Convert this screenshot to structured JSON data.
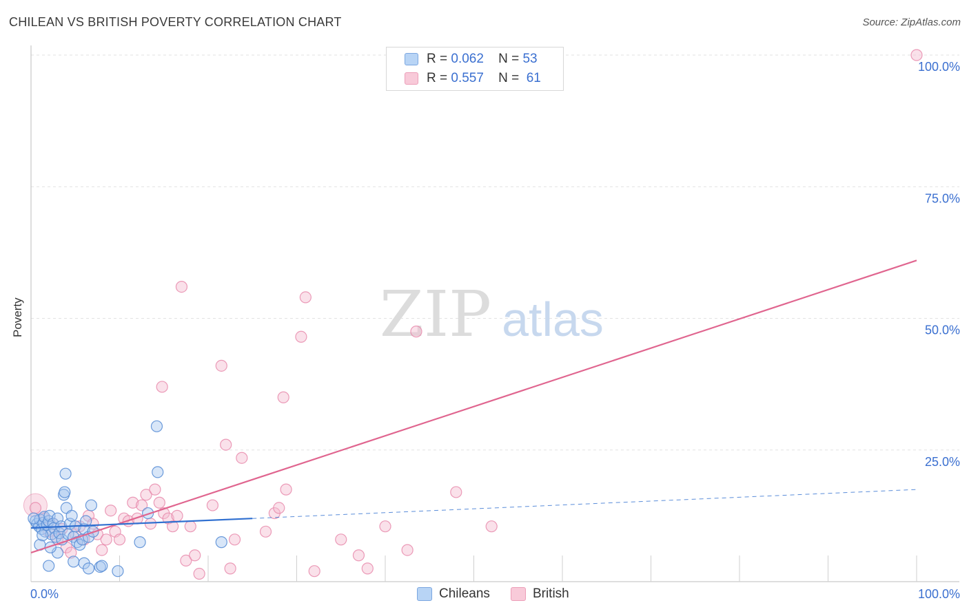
{
  "header": {
    "title": "CHILEAN VS BRITISH POVERTY CORRELATION CHART",
    "source": "Source: ZipAtlas.com"
  },
  "legend": {
    "rows": [
      {
        "r_label": "R =",
        "r_value": "0.062",
        "n_label": "N =",
        "n_value": "53"
      },
      {
        "r_label": "R =",
        "r_value": "0.557",
        "n_label": "N =",
        "n_value": "61"
      }
    ]
  },
  "bottom_legend": {
    "chileans": "Chileans",
    "british": "British"
  },
  "watermark": {
    "zip": "ZIP",
    "atlas": "atlas"
  },
  "colors": {
    "chileans_fill": "#a8c8f0",
    "chileans_stroke": "#5b8fd6",
    "chileans_line": "#2f6fd0",
    "british_fill": "#f5bcd0",
    "british_stroke": "#e88aab",
    "british_line": "#e0658f",
    "axis_label": "#3a6fd0"
  },
  "chart_data": {
    "type": "scatter",
    "title": "CHILEAN VS BRITISH POVERTY CORRELATION CHART",
    "xlabel": "",
    "ylabel": "Poverty",
    "xlim": [
      0,
      100
    ],
    "ylim": [
      0,
      100
    ],
    "x_tick_labels": [
      "0.0%",
      "100.0%"
    ],
    "y_tick_labels": [
      "25.0%",
      "50.0%",
      "75.0%",
      "100.0%"
    ],
    "y_ticks": [
      25,
      50,
      75,
      100
    ],
    "grid": "horizontal dashed",
    "series": [
      {
        "name": "Chileans",
        "R": 0.062,
        "N": 53,
        "trend": {
          "x0": 0,
          "y0": 10.2,
          "x1": 25,
          "y1": 12.0,
          "dashed_to_x": 100,
          "dashed_to_y": 17.5
        },
        "points": [
          [
            0.5,
            11.5
          ],
          [
            0.7,
            11.0
          ],
          [
            0.9,
            10.5
          ],
          [
            1.0,
            11.8
          ],
          [
            1.2,
            10.0
          ],
          [
            1.4,
            11.2
          ],
          [
            1.5,
            12.3
          ],
          [
            1.6,
            9.5
          ],
          [
            1.8,
            10.8
          ],
          [
            2.0,
            11.5
          ],
          [
            2.1,
            12.5
          ],
          [
            2.3,
            9.0
          ],
          [
            2.5,
            11.0
          ],
          [
            2.6,
            10.2
          ],
          [
            2.8,
            8.5
          ],
          [
            3.0,
            12.0
          ],
          [
            3.2,
            9.2
          ],
          [
            3.4,
            10.5
          ],
          [
            3.5,
            8.0
          ],
          [
            3.7,
            16.5
          ],
          [
            3.8,
            17.0
          ],
          [
            3.9,
            20.5
          ],
          [
            4.0,
            14.0
          ],
          [
            4.2,
            9.0
          ],
          [
            4.4,
            11.0
          ],
          [
            4.6,
            12.5
          ],
          [
            4.8,
            8.5
          ],
          [
            5.0,
            10.5
          ],
          [
            5.2,
            7.5
          ],
          [
            5.5,
            7.0
          ],
          [
            5.8,
            8.0
          ],
          [
            6.0,
            10.0
          ],
          [
            6.2,
            11.5
          ],
          [
            6.5,
            8.5
          ],
          [
            6.8,
            14.5
          ],
          [
            7.0,
            9.5
          ],
          [
            1.0,
            7.0
          ],
          [
            2.0,
            3.0
          ],
          [
            3.0,
            5.5
          ],
          [
            4.8,
            3.8
          ],
          [
            6.0,
            3.5
          ],
          [
            6.5,
            2.5
          ],
          [
            7.8,
            2.8
          ],
          [
            8.0,
            3.0
          ],
          [
            9.8,
            2.0
          ],
          [
            12.3,
            7.5
          ],
          [
            13.2,
            13.0
          ],
          [
            14.3,
            20.8
          ],
          [
            14.2,
            29.5
          ],
          [
            21.5,
            7.5
          ],
          [
            0.3,
            12.0
          ],
          [
            1.3,
            8.8
          ],
          [
            2.2,
            6.5
          ]
        ]
      },
      {
        "name": "British",
        "R": 0.557,
        "N": 61,
        "trend": {
          "x0": 0,
          "y0": 5.5,
          "x1": 100,
          "y1": 61.0
        },
        "points": [
          [
            0.5,
            14.0
          ],
          [
            1.5,
            12.0
          ],
          [
            2.0,
            9.5
          ],
          [
            2.5,
            11.0
          ],
          [
            3.0,
            8.0
          ],
          [
            3.5,
            10.0
          ],
          [
            4.0,
            6.5
          ],
          [
            4.5,
            5.5
          ],
          [
            5.0,
            9.0
          ],
          [
            5.5,
            10.5
          ],
          [
            6.0,
            8.0
          ],
          [
            6.5,
            12.5
          ],
          [
            7.0,
            11.0
          ],
          [
            7.5,
            9.0
          ],
          [
            8.0,
            6.0
          ],
          [
            8.5,
            8.0
          ],
          [
            9.0,
            13.5
          ],
          [
            9.5,
            9.5
          ],
          [
            10.0,
            8.0
          ],
          [
            10.5,
            12.0
          ],
          [
            11.0,
            11.5
          ],
          [
            11.5,
            15.0
          ],
          [
            12.0,
            12.0
          ],
          [
            12.5,
            14.5
          ],
          [
            13.0,
            16.5
          ],
          [
            13.5,
            11.0
          ],
          [
            14.0,
            17.5
          ],
          [
            14.5,
            15.0
          ],
          [
            15.0,
            13.0
          ],
          [
            15.5,
            12.0
          ],
          [
            16.0,
            10.5
          ],
          [
            16.5,
            12.5
          ],
          [
            17.0,
            56.0
          ],
          [
            17.5,
            4.0
          ],
          [
            18.0,
            10.5
          ],
          [
            18.5,
            5.0
          ],
          [
            19.0,
            1.5
          ],
          [
            20.5,
            14.5
          ],
          [
            21.5,
            41.0
          ],
          [
            22.0,
            26.0
          ],
          [
            22.5,
            2.5
          ],
          [
            23.8,
            23.5
          ],
          [
            14.8,
            37.0
          ],
          [
            26.5,
            9.5
          ],
          [
            27.5,
            13.0
          ],
          [
            28.0,
            14.0
          ],
          [
            28.5,
            35.0
          ],
          [
            28.8,
            17.5
          ],
          [
            30.5,
            46.5
          ],
          [
            31.0,
            54.0
          ],
          [
            32.0,
            2.0
          ],
          [
            35.0,
            8.0
          ],
          [
            37.0,
            5.0
          ],
          [
            38.0,
            2.5
          ],
          [
            40.0,
            10.5
          ],
          [
            42.5,
            6.0
          ],
          [
            43.5,
            47.5
          ],
          [
            48.0,
            17.0
          ],
          [
            52.0,
            10.5
          ],
          [
            100.0,
            100.0
          ],
          [
            23.0,
            8.0
          ]
        ]
      }
    ]
  }
}
